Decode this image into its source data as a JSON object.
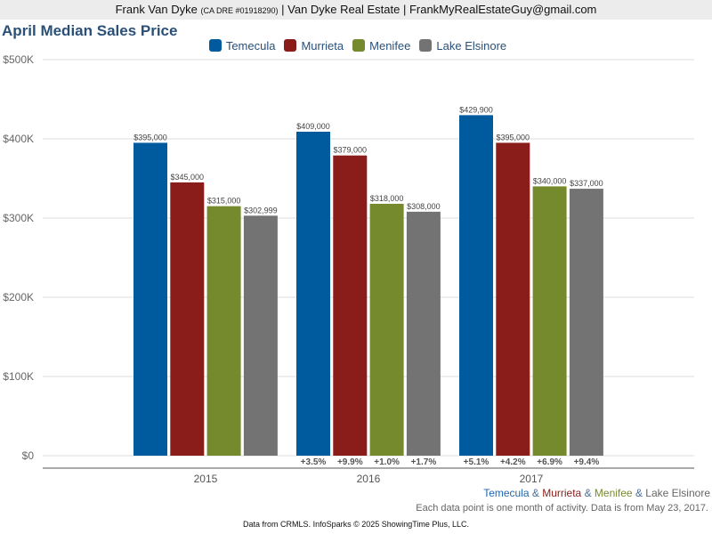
{
  "header": {
    "name": "Frank Van Dyke",
    "license": "(CA DRE #01918290)",
    "company": "| Van Dyke Real Estate | FrankMyRealEstateGuy@gmail.com"
  },
  "chart_data": {
    "type": "bar",
    "title": "April Median Sales Price",
    "categories": [
      "2015",
      "2016",
      "2017"
    ],
    "ylim": [
      0,
      500000
    ],
    "yticks": [
      {
        "v": 0,
        "label": "$0"
      },
      {
        "v": 100000,
        "label": "$100K"
      },
      {
        "v": 200000,
        "label": "$200K"
      },
      {
        "v": 300000,
        "label": "$300K"
      },
      {
        "v": 400000,
        "label": "$400K"
      },
      {
        "v": 500000,
        "label": "$500K"
      }
    ],
    "legend_position": "top-center",
    "grid": true,
    "series": [
      {
        "name": "Temecula",
        "color": "#005a9e",
        "values": [
          395000,
          409000,
          429900
        ],
        "labels": [
          "$395,000",
          "$409,000",
          "$429,900"
        ],
        "changes": [
          "",
          "+3.5%",
          "+5.1%"
        ]
      },
      {
        "name": "Murrieta",
        "color": "#8a1d19",
        "values": [
          345000,
          379000,
          395000
        ],
        "labels": [
          "$345,000",
          "$379,000",
          "$395,000"
        ],
        "changes": [
          "",
          "+9.9%",
          "+4.2%"
        ]
      },
      {
        "name": "Menifee",
        "color": "#758a2d",
        "values": [
          315000,
          318000,
          340000
        ],
        "labels": [
          "$315,000",
          "$318,000",
          "$340,000"
        ],
        "changes": [
          "",
          "+1.0%",
          "+6.9%"
        ]
      },
      {
        "name": "Lake Elsinore",
        "color": "#737373",
        "values": [
          302999,
          308000,
          337000
        ],
        "labels": [
          "$302,999",
          "$308,000",
          "$337,000"
        ],
        "changes": [
          "",
          "+1.7%",
          "+9.4%"
        ]
      }
    ]
  },
  "subtitle": {
    "parts": [
      "Temecula",
      " & ",
      "Murrieta",
      " & ",
      "Menifee",
      " & ",
      "Lake Elsinore"
    ]
  },
  "note": "Each data point is one month of activity. Data is from May 23, 2017.",
  "footer": "Data from CRMLS. InfoSparks © 2025 ShowingTime Plus, LLC."
}
